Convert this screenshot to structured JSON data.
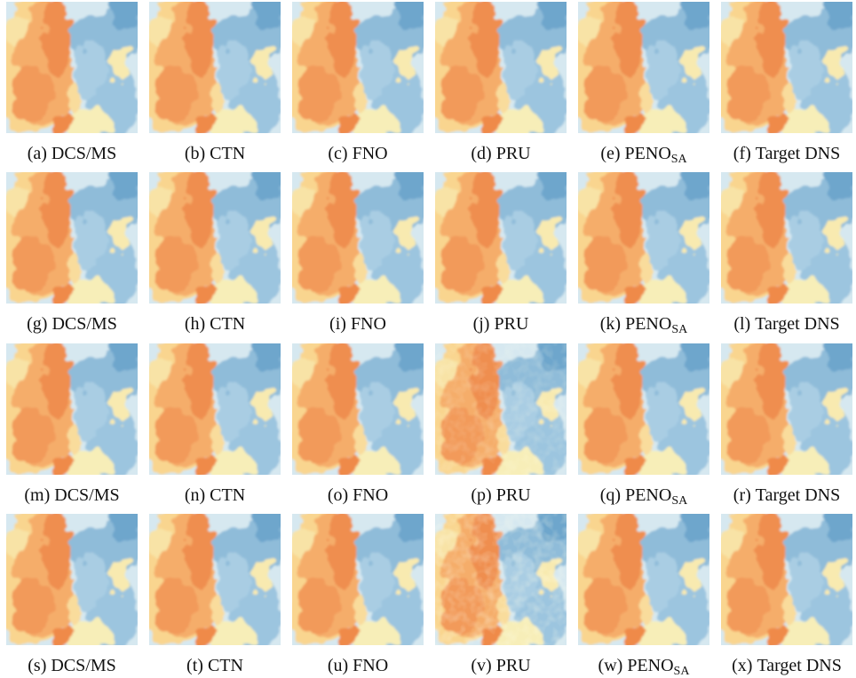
{
  "panels": [
    [
      {
        "letter": "(a)",
        "name": "DCS/MS"
      },
      {
        "letter": "(b)",
        "name": "CTN"
      },
      {
        "letter": "(c)",
        "name": "FNO"
      },
      {
        "letter": "(d)",
        "name": "PRU"
      },
      {
        "letter": "(e)",
        "name": "PENO",
        "sub": "SA"
      },
      {
        "letter": "(f)",
        "name": "Target DNS"
      }
    ],
    [
      {
        "letter": "(g)",
        "name": "DCS/MS"
      },
      {
        "letter": "(h)",
        "name": "CTN"
      },
      {
        "letter": "(i)",
        "name": "FNO"
      },
      {
        "letter": "(j)",
        "name": "PRU"
      },
      {
        "letter": "(k)",
        "name": "PENO",
        "sub": "SA"
      },
      {
        "letter": "(l)",
        "name": "Target DNS"
      }
    ],
    [
      {
        "letter": "(m)",
        "name": "DCS/MS"
      },
      {
        "letter": "(n)",
        "name": "CTN"
      },
      {
        "letter": "(o)",
        "name": "FNO"
      },
      {
        "letter": "(p)",
        "name": "PRU"
      },
      {
        "letter": "(q)",
        "name": "PENO",
        "sub": "SA"
      },
      {
        "letter": "(r)",
        "name": "Target DNS"
      }
    ],
    [
      {
        "letter": "(s)",
        "name": "DCS/MS"
      },
      {
        "letter": "(t)",
        "name": "CTN"
      },
      {
        "letter": "(u)",
        "name": "FNO"
      },
      {
        "letter": "(v)",
        "name": "PRU"
      },
      {
        "letter": "(w)",
        "name": "PENO",
        "sub": "SA"
      },
      {
        "letter": "(x)",
        "name": "Target DNS"
      }
    ]
  ]
}
